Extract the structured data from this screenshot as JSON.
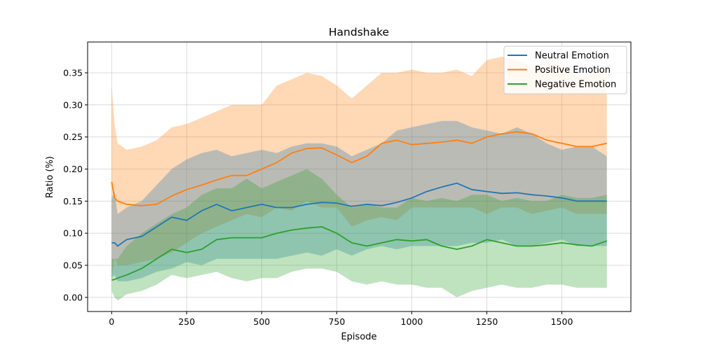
{
  "chart_data": {
    "type": "line",
    "title": "Handshake",
    "xlabel": "Episode",
    "ylabel": "Ratio (%)",
    "xlim": [
      -80,
      1730
    ],
    "ylim": [
      -0.022,
      0.398
    ],
    "xticks": [
      0,
      250,
      500,
      750,
      1000,
      1250,
      1500
    ],
    "yticks": [
      0.0,
      0.05,
      0.1,
      0.15,
      0.2,
      0.25,
      0.3,
      0.35
    ],
    "ytick_labels": [
      "0.00",
      "0.05",
      "0.10",
      "0.15",
      "0.20",
      "0.25",
      "0.30",
      "0.35"
    ],
    "grid": true,
    "legend_position": "top-right",
    "series": [
      {
        "name": "Neutral Emotion",
        "color": "#1f77b4",
        "x": [
          0,
          10,
          20,
          50,
          100,
          150,
          200,
          250,
          300,
          350,
          400,
          450,
          500,
          550,
          600,
          650,
          700,
          750,
          800,
          850,
          900,
          950,
          1000,
          1050,
          1100,
          1150,
          1200,
          1250,
          1300,
          1350,
          1400,
          1450,
          1500,
          1550,
          1600,
          1650
        ],
        "y": [
          0.085,
          0.085,
          0.08,
          0.09,
          0.095,
          0.11,
          0.125,
          0.12,
          0.135,
          0.145,
          0.135,
          0.14,
          0.145,
          0.14,
          0.14,
          0.145,
          0.148,
          0.147,
          0.142,
          0.145,
          0.143,
          0.148,
          0.155,
          0.165,
          0.172,
          0.178,
          0.168,
          0.165,
          0.162,
          0.163,
          0.16,
          0.158,
          0.155,
          0.15,
          0.15,
          0.15
        ],
        "lower": [
          0.03,
          0.035,
          0.025,
          0.025,
          0.03,
          0.04,
          0.045,
          0.055,
          0.05,
          0.06,
          0.06,
          0.06,
          0.06,
          0.06,
          0.065,
          0.07,
          0.065,
          0.075,
          0.065,
          0.075,
          0.08,
          0.075,
          0.08,
          0.08,
          0.08,
          0.08,
          0.085,
          0.085,
          0.09,
          0.08,
          0.08,
          0.085,
          0.09,
          0.08,
          0.08,
          0.08
        ],
        "upper": [
          0.155,
          0.165,
          0.13,
          0.14,
          0.15,
          0.175,
          0.2,
          0.215,
          0.225,
          0.23,
          0.22,
          0.225,
          0.23,
          0.225,
          0.235,
          0.24,
          0.24,
          0.235,
          0.22,
          0.23,
          0.24,
          0.26,
          0.265,
          0.27,
          0.275,
          0.275,
          0.265,
          0.26,
          0.255,
          0.265,
          0.255,
          0.24,
          0.23,
          0.235,
          0.235,
          0.22
        ]
      },
      {
        "name": "Positive Emotion",
        "color": "#ff7f0e",
        "x": [
          0,
          10,
          20,
          50,
          100,
          150,
          200,
          250,
          300,
          350,
          400,
          450,
          500,
          550,
          600,
          650,
          700,
          750,
          800,
          850,
          900,
          950,
          1000,
          1050,
          1100,
          1150,
          1200,
          1250,
          1300,
          1350,
          1400,
          1450,
          1500,
          1550,
          1600,
          1650
        ],
        "y": [
          0.18,
          0.155,
          0.15,
          0.145,
          0.143,
          0.145,
          0.158,
          0.168,
          0.175,
          0.183,
          0.19,
          0.19,
          0.2,
          0.21,
          0.225,
          0.232,
          0.233,
          0.222,
          0.21,
          0.22,
          0.24,
          0.245,
          0.238,
          0.24,
          0.242,
          0.245,
          0.24,
          0.25,
          0.255,
          0.258,
          0.255,
          0.245,
          0.24,
          0.235,
          0.235,
          0.24
        ],
        "lower": [
          0.03,
          0.06,
          0.05,
          0.05,
          0.055,
          0.06,
          0.07,
          0.085,
          0.1,
          0.11,
          0.12,
          0.13,
          0.125,
          0.14,
          0.135,
          0.15,
          0.14,
          0.14,
          0.11,
          0.12,
          0.125,
          0.12,
          0.14,
          0.14,
          0.14,
          0.14,
          0.14,
          0.13,
          0.14,
          0.14,
          0.13,
          0.135,
          0.14,
          0.13,
          0.13,
          0.13
        ],
        "upper": [
          0.33,
          0.27,
          0.24,
          0.23,
          0.235,
          0.245,
          0.265,
          0.27,
          0.28,
          0.29,
          0.3,
          0.3,
          0.3,
          0.33,
          0.34,
          0.35,
          0.345,
          0.33,
          0.31,
          0.33,
          0.35,
          0.35,
          0.355,
          0.35,
          0.35,
          0.355,
          0.345,
          0.37,
          0.375,
          0.37,
          0.36,
          0.37,
          0.36,
          0.345,
          0.35,
          0.35
        ]
      },
      {
        "name": "Negative Emotion",
        "color": "#2ca02c",
        "x": [
          0,
          10,
          20,
          50,
          100,
          150,
          200,
          250,
          300,
          350,
          400,
          450,
          500,
          550,
          600,
          650,
          700,
          750,
          800,
          850,
          900,
          950,
          1000,
          1050,
          1100,
          1150,
          1200,
          1250,
          1300,
          1350,
          1400,
          1450,
          1500,
          1550,
          1600,
          1650
        ],
        "y": [
          0.027,
          0.028,
          0.03,
          0.035,
          0.045,
          0.06,
          0.075,
          0.07,
          0.075,
          0.09,
          0.093,
          0.093,
          0.093,
          0.1,
          0.105,
          0.108,
          0.11,
          0.1,
          0.085,
          0.08,
          0.085,
          0.09,
          0.088,
          0.09,
          0.08,
          0.075,
          0.08,
          0.09,
          0.085,
          0.08,
          0.08,
          0.082,
          0.085,
          0.082,
          0.08,
          0.088
        ],
        "lower": [
          0.01,
          0.0,
          -0.005,
          0.005,
          0.01,
          0.02,
          0.035,
          0.03,
          0.035,
          0.04,
          0.03,
          0.025,
          0.03,
          0.03,
          0.04,
          0.045,
          0.045,
          0.04,
          0.025,
          0.02,
          0.025,
          0.02,
          0.02,
          0.015,
          0.015,
          0.0,
          0.01,
          0.015,
          0.02,
          0.015,
          0.015,
          0.02,
          0.02,
          0.015,
          0.015,
          0.015
        ],
        "upper": [
          0.06,
          0.06,
          0.06,
          0.08,
          0.1,
          0.115,
          0.13,
          0.14,
          0.16,
          0.17,
          0.17,
          0.185,
          0.17,
          0.18,
          0.19,
          0.2,
          0.185,
          0.16,
          0.14,
          0.145,
          0.14,
          0.14,
          0.155,
          0.15,
          0.155,
          0.15,
          0.16,
          0.16,
          0.15,
          0.155,
          0.15,
          0.15,
          0.16,
          0.155,
          0.155,
          0.16
        ]
      }
    ]
  }
}
